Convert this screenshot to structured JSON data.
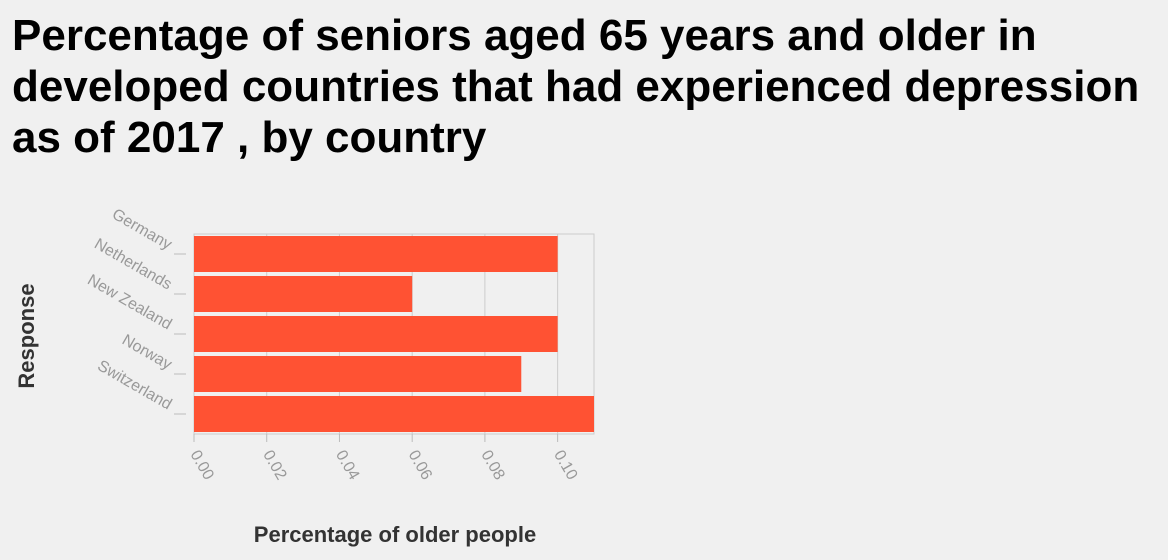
{
  "chart_data": {
    "type": "bar",
    "orientation": "horizontal",
    "title": "Percentage of seniors aged 65 years and older in developed countries that had experienced depression as of 2017 , by country",
    "xlabel": "Percentage of older people",
    "ylabel": "Response",
    "categories": [
      "Germany",
      "Netherlands",
      "New Zealand",
      "Norway",
      "Switzerland"
    ],
    "values": [
      0.1,
      0.06,
      0.1,
      0.09,
      0.11
    ],
    "xlim": [
      0,
      0.11
    ],
    "xticks": [
      "0.00",
      "0.02",
      "0.04",
      "0.06",
      "0.08",
      "0.10"
    ],
    "grid": true,
    "bar_color": "#ff5233"
  }
}
